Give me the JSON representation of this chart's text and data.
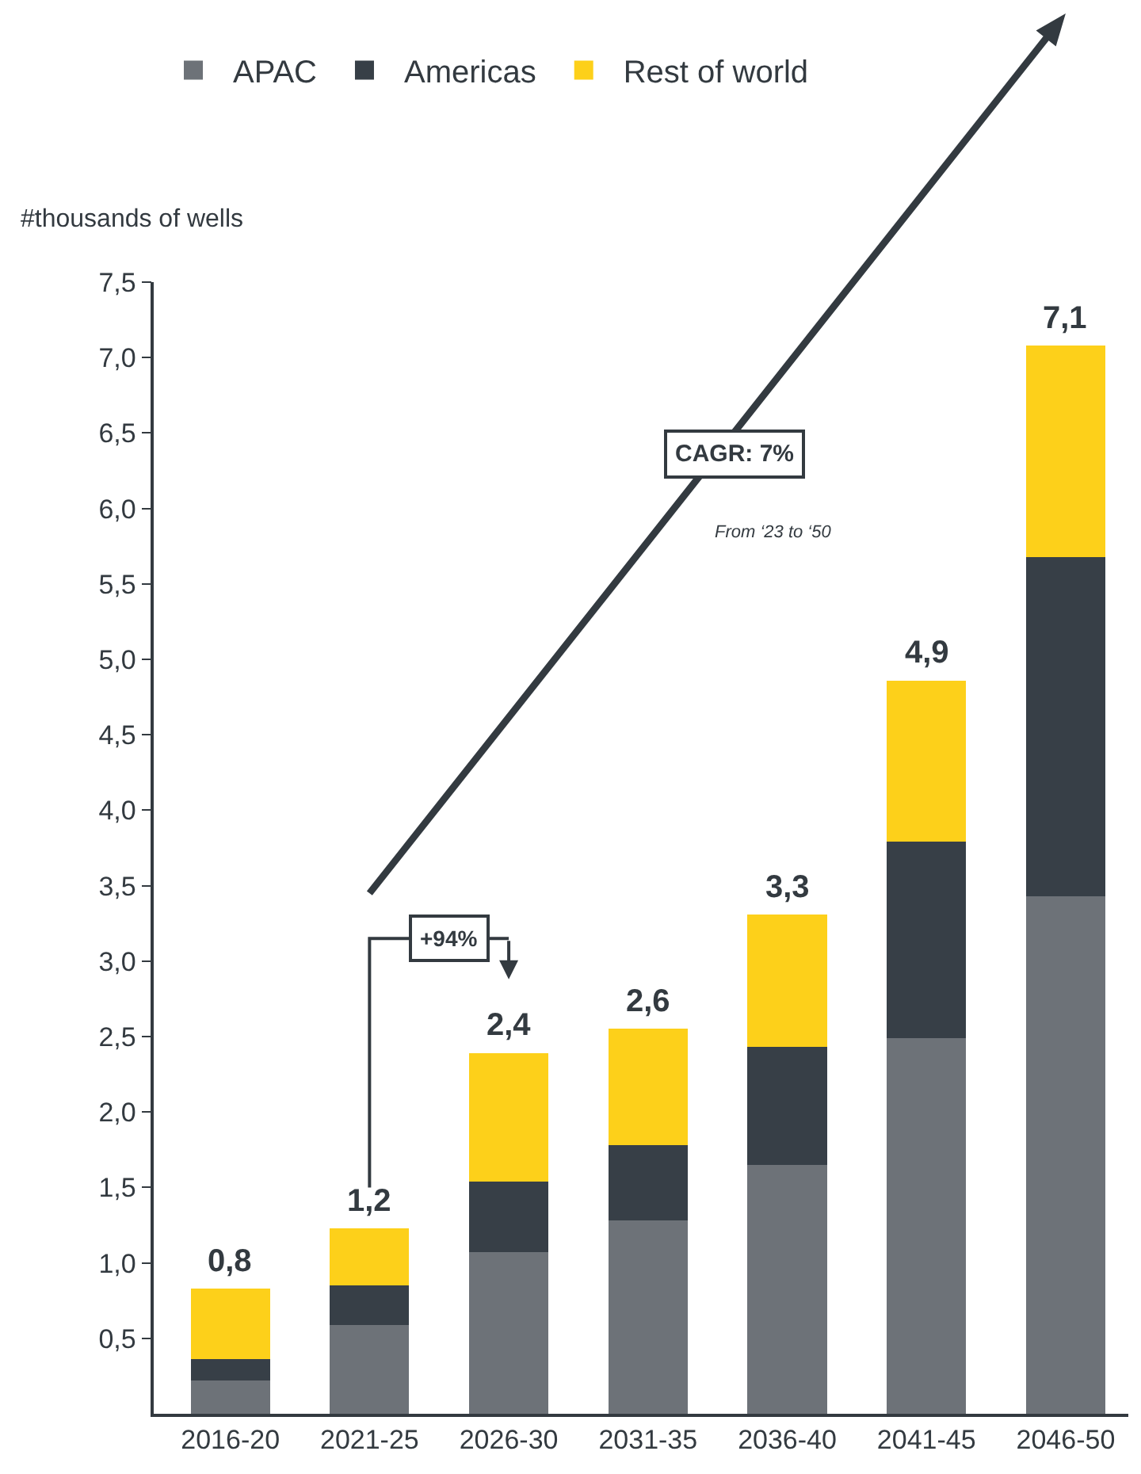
{
  "chart_data": {
    "type": "bar",
    "stacked": true,
    "ylabel": "#thousands of wells",
    "categories": [
      "2016-20",
      "2021-25",
      "2026-30",
      "2031-35",
      "2036-40",
      "2041-45",
      "2046-50"
    ],
    "series": [
      {
        "name": "APAC",
        "color": "#6d7278",
        "values": [
          0.22,
          0.59,
          1.07,
          1.28,
          1.65,
          2.49,
          3.43
        ]
      },
      {
        "name": "Americas",
        "color": "#373f47",
        "values": [
          0.14,
          0.26,
          0.47,
          0.5,
          0.78,
          1.3,
          2.25
        ]
      },
      {
        "name": "Rest of world",
        "color": "#fdd01a",
        "values": [
          0.47,
          0.38,
          0.85,
          0.77,
          0.88,
          1.07,
          1.4
        ]
      }
    ],
    "totals": [
      "0,8",
      "1,2",
      "2,4",
      "2,6",
      "3,3",
      "4,9",
      "7,1"
    ],
    "ylim": [
      0,
      7.5
    ],
    "yticks": [
      {
        "value": 0.5,
        "label": "0,5"
      },
      {
        "value": 1.0,
        "label": "1,0"
      },
      {
        "value": 1.5,
        "label": "1,5"
      },
      {
        "value": 2.0,
        "label": "2,0"
      },
      {
        "value": 2.5,
        "label": "2,5"
      },
      {
        "value": 3.0,
        "label": "3,0"
      },
      {
        "value": 3.5,
        "label": "3,5"
      },
      {
        "value": 4.0,
        "label": "4,0"
      },
      {
        "value": 4.5,
        "label": "4,5"
      },
      {
        "value": 5.0,
        "label": "5,0"
      },
      {
        "value": 5.5,
        "label": "5,5"
      },
      {
        "value": 6.0,
        "label": "6,0"
      },
      {
        "value": 6.5,
        "label": "6,5"
      },
      {
        "value": 7.0,
        "label": "7,0"
      },
      {
        "value": 7.5,
        "label": "7,5"
      }
    ],
    "annotations": [
      "CAGR: 7%",
      "From ‘23 to ‘50",
      "+94%"
    ],
    "legend": "top"
  }
}
